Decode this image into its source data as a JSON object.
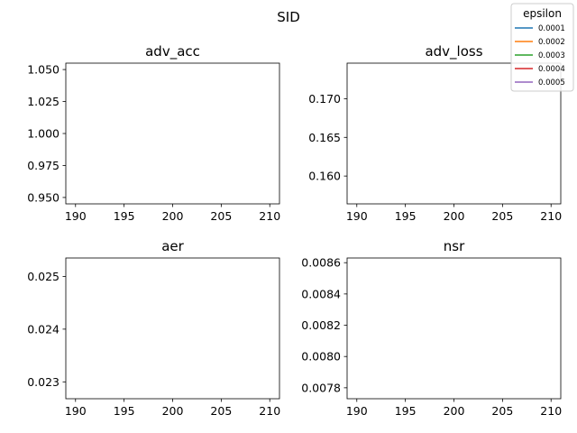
{
  "figure": {
    "suptitle": "SID",
    "legend": {
      "title": "epsilon",
      "placement": "top-right",
      "entries": [
        {
          "label": "0.0001",
          "color": "#1f77b4"
        },
        {
          "label": "0.0002",
          "color": "#ff7f0e"
        },
        {
          "label": "0.0003",
          "color": "#2ca02c"
        },
        {
          "label": "0.0004",
          "color": "#d62728"
        },
        {
          "label": "0.0005",
          "color": "#9467bd"
        }
      ]
    }
  },
  "chart_data": [
    {
      "type": "line",
      "title": "adv_acc",
      "xlim": [
        189,
        211
      ],
      "ylim": [
        0.945,
        1.055
      ],
      "xticks": [
        190,
        195,
        200,
        205,
        210
      ],
      "xtick_labels": [
        "190",
        "195",
        "200",
        "205",
        "210"
      ],
      "yticks": [
        0.95,
        0.975,
        1.0,
        1.025,
        1.05
      ],
      "ytick_labels": [
        "0.950",
        "0.975",
        "1.000",
        "1.025",
        "1.050"
      ],
      "series": [
        {
          "name": "0.0001",
          "x": [],
          "y": []
        },
        {
          "name": "0.0002",
          "x": [],
          "y": []
        },
        {
          "name": "0.0003",
          "x": [],
          "y": []
        },
        {
          "name": "0.0004",
          "x": [],
          "y": []
        },
        {
          "name": "0.0005",
          "x": [],
          "y": []
        }
      ]
    },
    {
      "type": "line",
      "title": "adv_loss",
      "xlim": [
        189,
        211
      ],
      "ylim": [
        0.1564,
        0.1746
      ],
      "xticks": [
        190,
        195,
        200,
        205,
        210
      ],
      "xtick_labels": [
        "190",
        "195",
        "200",
        "205",
        "210"
      ],
      "yticks": [
        0.16,
        0.165,
        0.17
      ],
      "ytick_labels": [
        "0.160",
        "0.165",
        "0.170"
      ],
      "series": [
        {
          "name": "0.0001",
          "x": [],
          "y": []
        },
        {
          "name": "0.0002",
          "x": [],
          "y": []
        },
        {
          "name": "0.0003",
          "x": [],
          "y": []
        },
        {
          "name": "0.0004",
          "x": [],
          "y": []
        },
        {
          "name": "0.0005",
          "x": [],
          "y": []
        }
      ]
    },
    {
      "type": "line",
      "title": "aer",
      "xlim": [
        189,
        211
      ],
      "ylim": [
        0.02268,
        0.02535
      ],
      "xticks": [
        190,
        195,
        200,
        205,
        210
      ],
      "xtick_labels": [
        "190",
        "195",
        "200",
        "205",
        "210"
      ],
      "yticks": [
        0.023,
        0.024,
        0.025
      ],
      "ytick_labels": [
        "0.023",
        "0.024",
        "0.025"
      ],
      "series": [
        {
          "name": "0.0001",
          "x": [],
          "y": []
        },
        {
          "name": "0.0002",
          "x": [],
          "y": []
        },
        {
          "name": "0.0003",
          "x": [],
          "y": []
        },
        {
          "name": "0.0004",
          "x": [],
          "y": []
        },
        {
          "name": "0.0005",
          "x": [],
          "y": []
        }
      ]
    },
    {
      "type": "line",
      "title": "nsr",
      "xlim": [
        189,
        211
      ],
      "ylim": [
        0.00773,
        0.00863
      ],
      "xticks": [
        190,
        195,
        200,
        205,
        210
      ],
      "xtick_labels": [
        "190",
        "195",
        "200",
        "205",
        "210"
      ],
      "yticks": [
        0.0078,
        0.008,
        0.0082,
        0.0084,
        0.0086
      ],
      "ytick_labels": [
        "0.0078",
        "0.0080",
        "0.0082",
        "0.0084",
        "0.0086"
      ],
      "series": [
        {
          "name": "0.0001",
          "x": [],
          "y": []
        },
        {
          "name": "0.0002",
          "x": [],
          "y": []
        },
        {
          "name": "0.0003",
          "x": [],
          "y": []
        },
        {
          "name": "0.0004",
          "x": [],
          "y": []
        },
        {
          "name": "0.0005",
          "x": [],
          "y": []
        }
      ]
    }
  ]
}
